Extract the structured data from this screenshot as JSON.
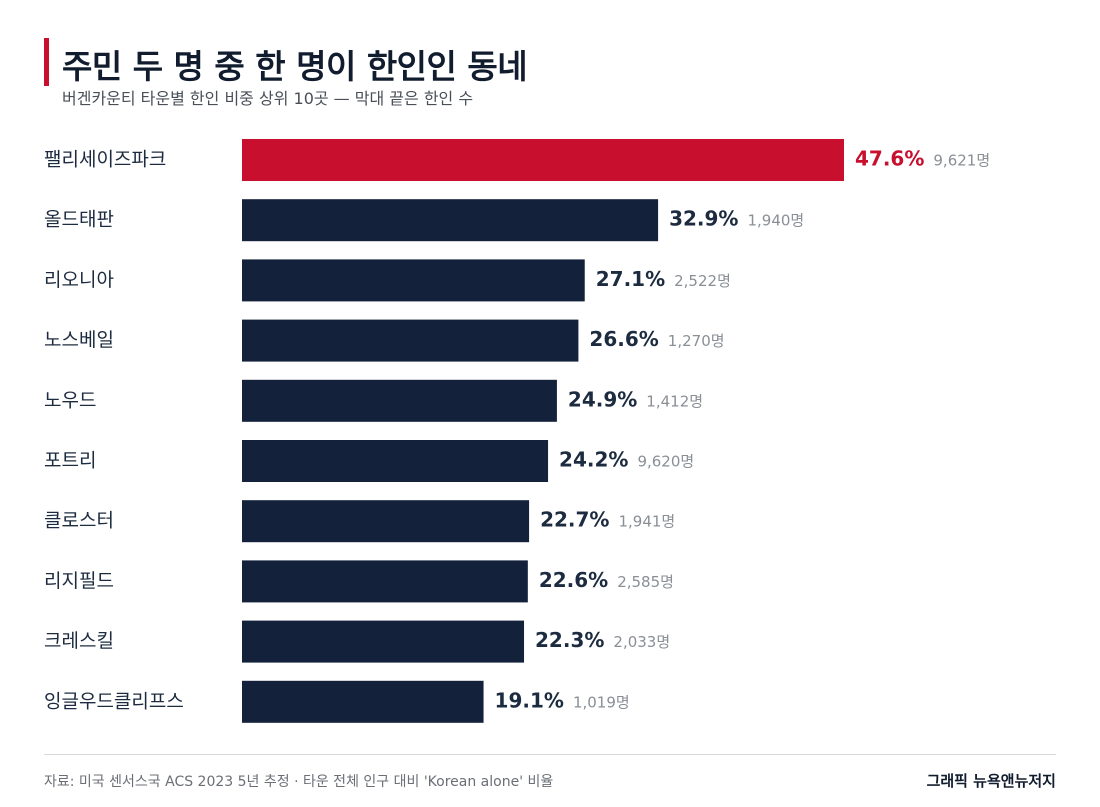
{
  "header": {
    "title": "주민 두 명 중 한 명이 한인인 동네",
    "subtitle": "버겐카운티 타운별 한인 비중 상위 10곳 — 막대 끝은 한인 수"
  },
  "chart_data": {
    "type": "bar",
    "orientation": "horizontal",
    "categories": [
      "팰리세이즈파크",
      "올드태판",
      "리오니아",
      "노스베일",
      "노우드",
      "포트리",
      "클로스터",
      "리지필드",
      "크레스킬",
      "잉글우드클리프스"
    ],
    "values": [
      47.6,
      32.9,
      27.1,
      26.6,
      24.9,
      24.2,
      22.7,
      22.6,
      22.3,
      19.1
    ],
    "value_labels": [
      "47.6%",
      "32.9%",
      "27.1%",
      "26.6%",
      "24.9%",
      "24.2%",
      "22.7%",
      "22.6%",
      "22.3%",
      "19.1%"
    ],
    "counts": [
      "9,621명",
      "1,940명",
      "2,522명",
      "1,270명",
      "1,412명",
      "9,620명",
      "1,941명",
      "2,585명",
      "2,033명",
      "1,019명"
    ],
    "highlight_index": 0,
    "colors": {
      "highlight": "#c8102e",
      "bar": "#13213a",
      "label": "#1c2b3f",
      "count": "#8a8f96"
    },
    "grid": false,
    "xlim": [
      0,
      47.6
    ]
  },
  "footer": {
    "source": "자료: 미국 센서스국 ACS 2023 5년 추정 · 타운 전체 인구 대비 'Korean alone' 비율",
    "credit": "그래픽 뉴욕앤뉴저지"
  }
}
